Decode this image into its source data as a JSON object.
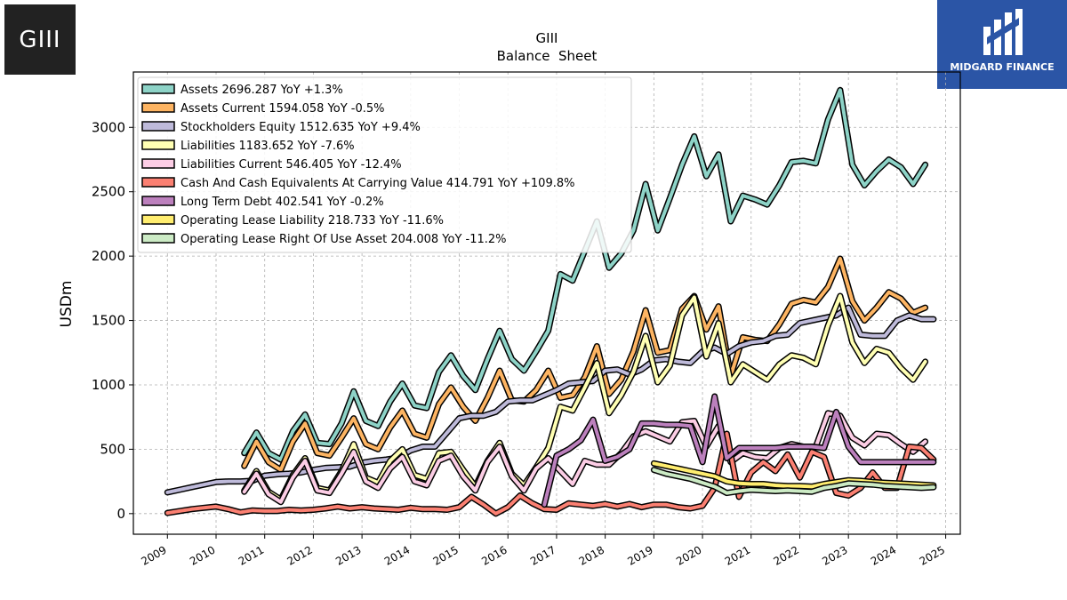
{
  "header": {
    "ticker_logo_text": "GIII",
    "brand_name": "MIDGARD FINANCE"
  },
  "chart_data": {
    "type": "line",
    "title": "GIII",
    "subtitle": "Balance  Sheet",
    "xlabel": "",
    "ylabel": "USDm",
    "xlim": [
      2008.3,
      2025.3
    ],
    "ylim": [
      -160,
      3430
    ],
    "x_ticks": [
      "2009",
      "2010",
      "2011",
      "2012",
      "2013",
      "2014",
      "2015",
      "2016",
      "2017",
      "2018",
      "2019",
      "2020",
      "2021",
      "2022",
      "2023",
      "2024",
      "2025"
    ],
    "y_ticks": [
      0,
      500,
      1000,
      1500,
      2000,
      2500,
      3000
    ],
    "grid": true,
    "legend_position": "top-left",
    "series": [
      {
        "name": "Assets  2696.287 YoY +1.3%",
        "color": "#8dd3c7",
        "x": [
          2010.58,
          2010.83,
          2011.08,
          2011.33,
          2011.58,
          2011.83,
          2012.08,
          2012.33,
          2012.58,
          2012.83,
          2013.08,
          2013.33,
          2013.58,
          2013.83,
          2014.08,
          2014.33,
          2014.58,
          2014.83,
          2015.08,
          2015.33,
          2015.58,
          2015.83,
          2016.08,
          2016.33,
          2016.58,
          2016.83,
          2017.08,
          2017.33,
          2017.58,
          2017.83,
          2018.08,
          2018.33,
          2018.58,
          2018.83,
          2019.08,
          2019.33,
          2019.58,
          2019.83,
          2020.08,
          2020.33,
          2020.58,
          2020.83,
          2021.08,
          2021.33,
          2021.58,
          2021.83,
          2022.08,
          2022.33,
          2022.58,
          2022.83,
          2023.08,
          2023.33,
          2023.58,
          2023.83,
          2024.08,
          2024.33,
          2024.58
        ],
        "y": [
          470,
          630,
          470,
          420,
          640,
          770,
          550,
          540,
          700,
          950,
          720,
          680,
          870,
          1010,
          840,
          820,
          1100,
          1230,
          1070,
          960,
          1200,
          1420,
          1200,
          1110,
          1260,
          1420,
          1860,
          1810,
          2040,
          2270,
          1910,
          2020,
          2200,
          2560,
          2200,
          2450,
          2710,
          2930,
          2620,
          2790,
          2270,
          2470,
          2440,
          2400,
          2550,
          2730,
          2740,
          2720,
          3060,
          3290,
          2710,
          2550,
          2660,
          2750,
          2690,
          2560,
          2710
        ]
      },
      {
        "name": "Assets Current  1594.058 YoY -0.5%",
        "color": "#fdb462",
        "x": [
          2010.58,
          2010.83,
          2011.08,
          2011.33,
          2011.58,
          2011.83,
          2012.08,
          2012.33,
          2012.58,
          2012.83,
          2013.08,
          2013.33,
          2013.58,
          2013.83,
          2014.08,
          2014.33,
          2014.58,
          2014.83,
          2015.08,
          2015.33,
          2015.58,
          2015.83,
          2016.08,
          2016.33,
          2016.58,
          2016.83,
          2017.08,
          2017.33,
          2017.58,
          2017.83,
          2018.08,
          2018.33,
          2018.58,
          2018.83,
          2019.08,
          2019.33,
          2019.58,
          2019.83,
          2020.08,
          2020.33,
          2020.58,
          2020.83,
          2021.08,
          2021.33,
          2021.58,
          2021.83,
          2022.08,
          2022.33,
          2022.58,
          2022.83,
          2023.08,
          2023.33,
          2023.58,
          2023.83,
          2024.08,
          2024.33,
          2024.58
        ],
        "y": [
          370,
          560,
          400,
          340,
          560,
          700,
          470,
          450,
          590,
          740,
          540,
          500,
          670,
          800,
          620,
          590,
          850,
          980,
          830,
          720,
          900,
          1110,
          880,
          870,
          960,
          1110,
          900,
          920,
          1060,
          1300,
          930,
          1040,
          1260,
          1580,
          1250,
          1270,
          1590,
          1690,
          1430,
          1610,
          1070,
          1370,
          1350,
          1340,
          1470,
          1630,
          1660,
          1640,
          1760,
          1980,
          1650,
          1500,
          1600,
          1720,
          1670,
          1560,
          1600
        ]
      },
      {
        "name": "Stockholders Equity  1512.635 YoY +9.4%",
        "color": "#bebada",
        "x": [
          2009.0,
          2009.25,
          2009.5,
          2009.75,
          2010.0,
          2010.25,
          2010.5,
          2010.75,
          2011.0,
          2011.25,
          2011.5,
          2011.75,
          2012.0,
          2012.25,
          2012.5,
          2012.75,
          2013.0,
          2013.25,
          2013.5,
          2013.75,
          2014.0,
          2014.25,
          2014.5,
          2014.75,
          2015.0,
          2015.25,
          2015.5,
          2015.75,
          2016.0,
          2016.25,
          2016.5,
          2016.75,
          2017.0,
          2017.25,
          2017.5,
          2017.75,
          2018.0,
          2018.25,
          2018.5,
          2018.75,
          2019.0,
          2019.25,
          2019.5,
          2019.75,
          2020.0,
          2020.25,
          2020.5,
          2020.75,
          2021.0,
          2021.25,
          2021.5,
          2021.75,
          2022.0,
          2022.25,
          2022.5,
          2022.75,
          2023.0,
          2023.25,
          2023.5,
          2023.75,
          2024.0,
          2024.25,
          2024.5,
          2024.75
        ],
        "y": [
          165,
          185,
          205,
          225,
          245,
          250,
          250,
          255,
          295,
          305,
          310,
          320,
          340,
          355,
          360,
          365,
          395,
          410,
          420,
          435,
          490,
          520,
          520,
          630,
          740,
          760,
          760,
          790,
          870,
          880,
          880,
          920,
          960,
          1010,
          1020,
          1030,
          1110,
          1120,
          1080,
          1120,
          1190,
          1200,
          1180,
          1170,
          1260,
          1290,
          1240,
          1300,
          1330,
          1340,
          1380,
          1390,
          1480,
          1500,
          1520,
          1540,
          1600,
          1390,
          1380,
          1380,
          1500,
          1540,
          1510,
          1510
        ]
      },
      {
        "name": "Liabilities  1183.652 YoY -7.6%",
        "color": "#ffffb3",
        "x": [
          2010.58,
          2010.83,
          2011.08,
          2011.33,
          2011.58,
          2011.83,
          2012.08,
          2012.33,
          2012.58,
          2012.83,
          2013.08,
          2013.33,
          2013.58,
          2013.83,
          2014.08,
          2014.33,
          2014.58,
          2014.83,
          2015.08,
          2015.33,
          2015.58,
          2015.83,
          2016.08,
          2016.33,
          2016.58,
          2016.83,
          2017.08,
          2017.33,
          2017.58,
          2017.83,
          2018.08,
          2018.33,
          2018.58,
          2018.83,
          2019.08,
          2019.33,
          2019.58,
          2019.83,
          2020.08,
          2020.33,
          2020.58,
          2020.83,
          2021.08,
          2021.33,
          2021.58,
          2021.83,
          2022.08,
          2022.33,
          2022.58,
          2022.83,
          2023.08,
          2023.33,
          2023.58,
          2023.83,
          2024.08,
          2024.33,
          2024.58
        ],
        "y": [
          180,
          330,
          170,
          110,
          300,
          430,
          200,
          180,
          330,
          540,
          280,
          240,
          410,
          500,
          300,
          270,
          470,
          480,
          340,
          210,
          410,
          550,
          310,
          220,
          360,
          510,
          830,
          800,
          980,
          1170,
          780,
          920,
          1100,
          1380,
          1020,
          1150,
          1540,
          1680,
          1220,
          1480,
          1020,
          1160,
          1100,
          1040,
          1160,
          1230,
          1210,
          1160,
          1460,
          1690,
          1330,
          1170,
          1280,
          1250,
          1130,
          1040,
          1180
        ]
      },
      {
        "name": "Liabilities Current  546.405 YoY -12.4%",
        "color": "#fccde5",
        "x": [
          2010.58,
          2010.83,
          2011.08,
          2011.33,
          2011.58,
          2011.83,
          2012.08,
          2012.33,
          2012.58,
          2012.83,
          2013.08,
          2013.33,
          2013.58,
          2013.83,
          2014.08,
          2014.33,
          2014.58,
          2014.83,
          2015.08,
          2015.33,
          2015.58,
          2015.83,
          2016.08,
          2016.33,
          2016.58,
          2016.83,
          2017.08,
          2017.33,
          2017.58,
          2017.83,
          2018.08,
          2018.33,
          2018.58,
          2018.83,
          2019.08,
          2019.33,
          2019.58,
          2019.83,
          2020.08,
          2020.33,
          2020.58,
          2020.83,
          2021.08,
          2021.33,
          2021.58,
          2021.83,
          2022.08,
          2022.33,
          2022.58,
          2022.83,
          2023.08,
          2023.33,
          2023.58,
          2023.83,
          2024.08,
          2024.33,
          2024.58
        ],
        "y": [
          170,
          310,
          150,
          90,
          280,
          410,
          180,
          160,
          310,
          480,
          250,
          200,
          350,
          440,
          250,
          220,
          410,
          450,
          290,
          180,
          400,
          520,
          290,
          180,
          350,
          430,
          330,
          230,
          410,
          380,
          380,
          470,
          600,
          640,
          600,
          560,
          710,
          720,
          520,
          680,
          400,
          470,
          440,
          430,
          510,
          540,
          520,
          520,
          780,
          760,
          590,
          530,
          620,
          610,
          540,
          480,
          560
        ]
      },
      {
        "name": "Cash And Cash Equivalents At Carrying Value  414.791 YoY +109.8%",
        "color": "#fb8072",
        "x": [
          2009.0,
          2009.25,
          2009.5,
          2009.75,
          2010.0,
          2010.25,
          2010.5,
          2010.75,
          2011.0,
          2011.25,
          2011.5,
          2011.75,
          2012.0,
          2012.25,
          2012.5,
          2012.75,
          2013.0,
          2013.25,
          2013.5,
          2013.75,
          2014.0,
          2014.25,
          2014.5,
          2014.75,
          2015.0,
          2015.25,
          2015.5,
          2015.75,
          2016.0,
          2016.25,
          2016.5,
          2016.75,
          2017.0,
          2017.25,
          2017.5,
          2017.75,
          2018.0,
          2018.25,
          2018.5,
          2018.75,
          2019.0,
          2019.25,
          2019.5,
          2019.75,
          2020.0,
          2020.25,
          2020.5,
          2020.75,
          2021.0,
          2021.25,
          2021.5,
          2021.75,
          2022.0,
          2022.25,
          2022.5,
          2022.75,
          2023.0,
          2023.25,
          2023.5,
          2023.75,
          2024.0,
          2024.25,
          2024.5,
          2024.75
        ],
        "y": [
          5,
          20,
          35,
          45,
          55,
          35,
          10,
          25,
          20,
          20,
          30,
          25,
          30,
          40,
          55,
          40,
          50,
          40,
          35,
          30,
          45,
          35,
          35,
          30,
          50,
          130,
          70,
          0,
          50,
          140,
          80,
          35,
          30,
          80,
          70,
          60,
          75,
          55,
          75,
          50,
          70,
          70,
          50,
          40,
          60,
          200,
          620,
          130,
          320,
          400,
          330,
          460,
          280,
          480,
          440,
          160,
          140,
          200,
          320,
          200,
          200,
          520,
          510,
          420
        ]
      },
      {
        "name": "Long Term Debt  402.541 YoY -0.2%",
        "color": "#bc80bd",
        "x": [
          2016.75,
          2017.0,
          2017.25,
          2017.5,
          2017.75,
          2018.0,
          2018.25,
          2018.5,
          2018.75,
          2019.0,
          2019.25,
          2019.5,
          2019.75,
          2020.0,
          2020.25,
          2020.5,
          2020.75,
          2021.0,
          2021.25,
          2021.5,
          2021.75,
          2022.0,
          2022.25,
          2022.5,
          2022.75,
          2023.0,
          2023.25,
          2023.5,
          2023.75,
          2024.0,
          2024.25,
          2024.5,
          2024.75
        ],
        "y": [
          70,
          450,
          500,
          570,
          730,
          410,
          440,
          500,
          700,
          700,
          690,
          690,
          680,
          400,
          910,
          430,
          510,
          510,
          510,
          510,
          520,
          520,
          520,
          510,
          790,
          520,
          400,
          400,
          400,
          400,
          400,
          400,
          400
        ]
      },
      {
        "name": "Operating Lease Liability  218.733 YoY -11.6%",
        "color": "#ffed6f",
        "x": [
          2019.0,
          2019.25,
          2019.5,
          2019.75,
          2020.0,
          2020.25,
          2020.5,
          2020.75,
          2021.0,
          2021.25,
          2021.5,
          2021.75,
          2022.0,
          2022.25,
          2022.5,
          2022.75,
          2023.0,
          2023.25,
          2023.5,
          2023.75,
          2024.0,
          2024.25,
          2024.5,
          2024.75
        ],
        "y": [
          390,
          370,
          350,
          330,
          310,
          290,
          250,
          235,
          230,
          230,
          220,
          215,
          215,
          210,
          230,
          245,
          260,
          255,
          245,
          240,
          235,
          230,
          225,
          220
        ]
      },
      {
        "name": "Operating Lease Right Of Use Asset  204.008 YoY -11.2%",
        "color": "#ccebc5",
        "x": [
          2019.0,
          2019.25,
          2019.5,
          2019.75,
          2020.0,
          2020.25,
          2020.5,
          2020.75,
          2021.0,
          2021.25,
          2021.5,
          2021.75,
          2022.0,
          2022.25,
          2022.5,
          2022.75,
          2023.0,
          2023.25,
          2023.5,
          2023.75,
          2024.0,
          2024.25,
          2024.5,
          2024.75
        ],
        "y": [
          340,
          310,
          290,
          270,
          240,
          210,
          160,
          175,
          185,
          180,
          175,
          180,
          175,
          170,
          200,
          215,
          235,
          230,
          225,
          215,
          210,
          205,
          200,
          205
        ]
      }
    ]
  }
}
